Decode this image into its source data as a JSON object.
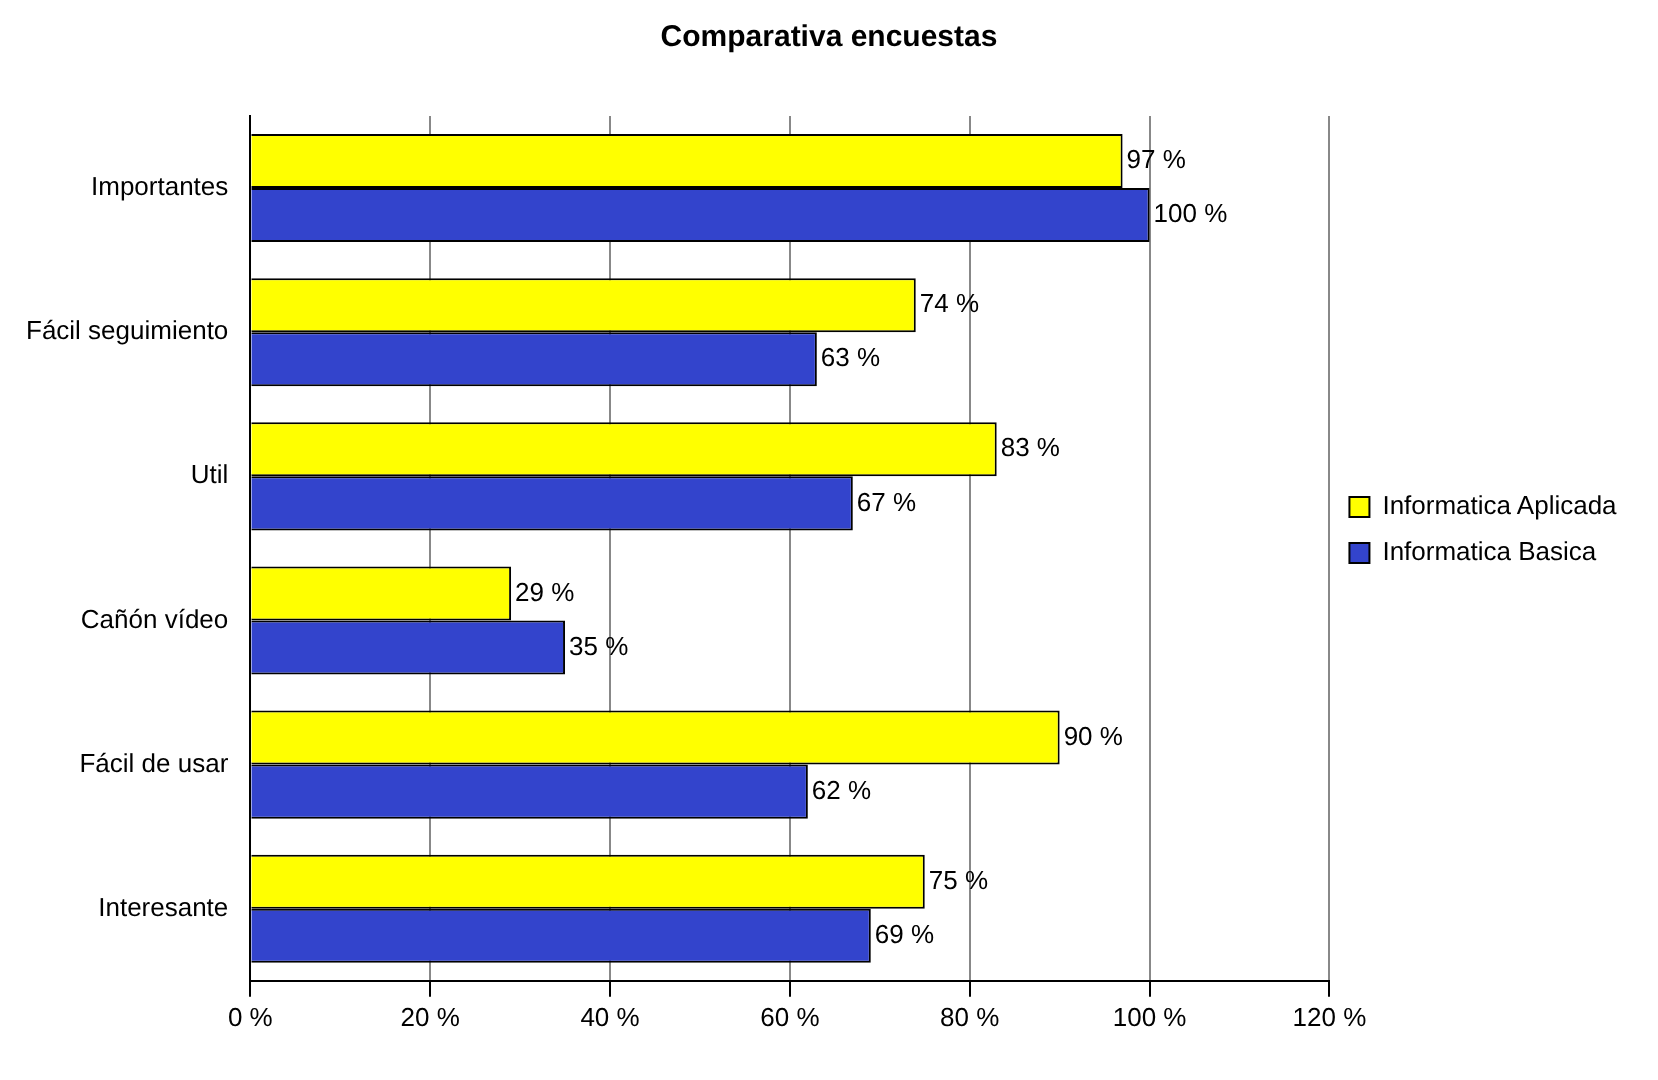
{
  "chart_data": {
    "type": "bar",
    "orientation": "horizontal",
    "title": "Comparativa encuestas",
    "categories": [
      "Importantes",
      "Fácil seguimiento",
      "Util",
      "Cañón vídeo",
      "Fácil de usar",
      "Interesante"
    ],
    "series": [
      {
        "name": "Informatica Aplicada",
        "color": "#ffff00",
        "values": [
          97,
          74,
          83,
          29,
          90,
          75
        ],
        "value_labels": [
          "97 %",
          "74 %",
          "83 %",
          "29 %",
          "90 %",
          "75 %"
        ]
      },
      {
        "name": "Informatica Basica",
        "color": "#3344cc",
        "values": [
          100,
          63,
          67,
          35,
          62,
          69
        ],
        "value_labels": [
          "100 %",
          "63 %",
          "67 %",
          "35 %",
          "62 %",
          "69 %"
        ]
      }
    ],
    "xlim": [
      0,
      120
    ],
    "xticks": [
      {
        "value": 0,
        "label": "0 %"
      },
      {
        "value": 20,
        "label": "20 %"
      },
      {
        "value": 40,
        "label": "40 %"
      },
      {
        "value": 60,
        "label": "60 %"
      },
      {
        "value": 80,
        "label": "80 %"
      },
      {
        "value": 100,
        "label": "100 %"
      },
      {
        "value": 120,
        "label": "120 %"
      }
    ],
    "grid": "x",
    "legend": "right"
  }
}
